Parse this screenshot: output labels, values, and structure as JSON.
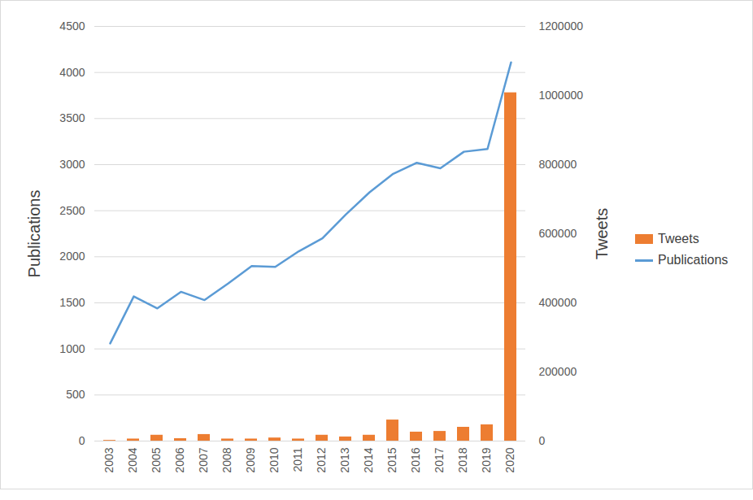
{
  "chart_data": {
    "type": "bar",
    "categories": [
      "2003",
      "2004",
      "2005",
      "2006",
      "2007",
      "2008",
      "2009",
      "2010",
      "2011",
      "2012",
      "2013",
      "2014",
      "2015",
      "2016",
      "2017",
      "2018",
      "2019",
      "2020"
    ],
    "series": [
      {
        "name": "Tweets",
        "type": "bar",
        "axis": "y2",
        "color": "#ED7D31",
        "values": [
          2000,
          6000,
          17000,
          7000,
          19000,
          6000,
          6000,
          9000,
          6000,
          17000,
          12000,
          17000,
          61000,
          26000,
          28000,
          40000,
          47000,
          1008000
        ]
      },
      {
        "name": "Publications",
        "type": "line",
        "color": "#5B9BD5",
        "values": [
          1060,
          1570,
          1440,
          1620,
          1530,
          1710,
          1900,
          1890,
          2060,
          2200,
          2460,
          2700,
          2900,
          3020,
          2960,
          3140,
          3170,
          4110
        ]
      }
    ],
    "ylabel": "Publications",
    "y2label": "Tweets",
    "ylim": [
      0,
      4500
    ],
    "yticks": [
      0,
      500,
      1000,
      1500,
      2000,
      2500,
      3000,
      3500,
      4000,
      4500
    ],
    "y2lim": [
      0,
      1200000
    ],
    "y2ticks": [
      0,
      200000,
      400000,
      600000,
      800000,
      1000000,
      1200000
    ],
    "grid": true,
    "legend": "right"
  }
}
